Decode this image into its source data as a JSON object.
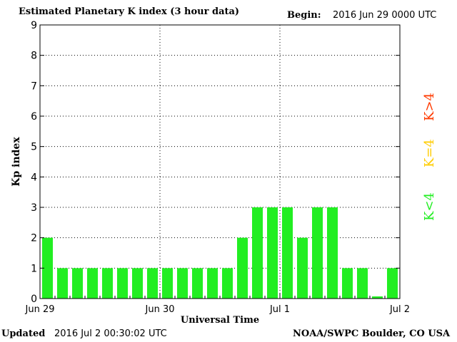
{
  "header": {
    "title": "Estimated Planetary K index (3 hour data)",
    "begin_label": "Begin:",
    "begin_value": "2016 Jun 29 0000 UTC"
  },
  "footer": {
    "updated_label": "Updated",
    "updated_value": "2016 Jul  2 00:30:02 UTC",
    "source": "NOAA/SWPC Boulder, CO USA"
  },
  "legend": {
    "high": {
      "label": "K>4",
      "color": "#ff3a00"
    },
    "mid": {
      "label": "K=4",
      "color": "#ffcc00"
    },
    "low": {
      "label": "K<4",
      "color": "#22ee22"
    }
  },
  "chart_data": {
    "type": "bar",
    "title": "Estimated Planetary K index (3 hour data)",
    "xlabel": "Universal Time",
    "ylabel": "Kp index",
    "ylim": [
      0,
      9
    ],
    "yticks": [
      0,
      1,
      2,
      3,
      4,
      5,
      6,
      7,
      8,
      9
    ],
    "x_tick_labels": [
      "Jun 29",
      "Jun 30",
      "Jul 1",
      "Jul 2"
    ],
    "grid": "dotted vertical at day boundaries, dotted horizontal at each integer",
    "interval": "3 hour",
    "values": [
      2,
      1,
      1,
      1,
      1,
      1,
      1,
      1,
      1,
      1,
      1,
      1,
      1,
      2,
      3,
      3,
      3,
      2,
      3,
      3,
      1,
      1,
      0.07,
      1
    ],
    "bar_color": "#22ee22"
  }
}
